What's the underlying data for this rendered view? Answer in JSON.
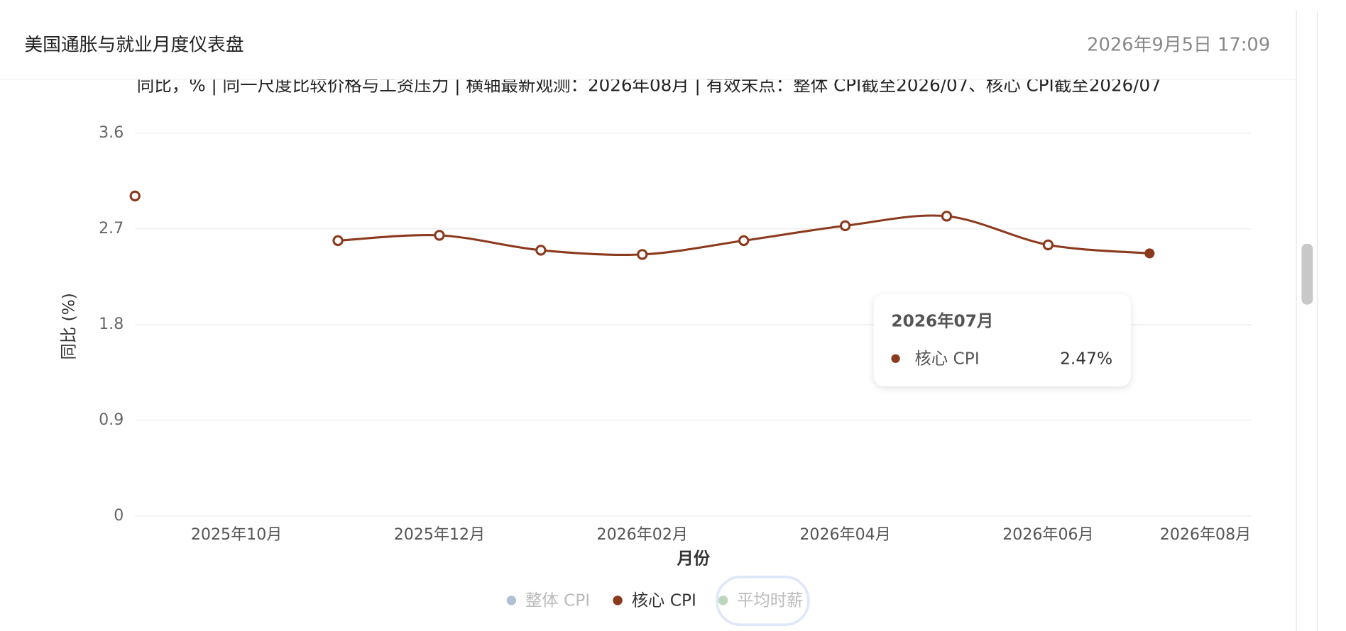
{
  "header": {
    "title": "美国通胀与就业月度仪表盘",
    "timestamp": "2026年9月5日 17:09"
  },
  "chart_data": {
    "type": "line",
    "subtitle": "同比，% | 同一尺度比较价格与工资压力 | 横轴最新观测：2026年08月 | 有效末点：整体 CPI截至2026/07、核心 CPI截至2026/07",
    "x_label": "月份",
    "y_label": "同比 (%)",
    "categories": [
      null,
      "2025年10月",
      null,
      "2025年12月",
      null,
      "2026年02月",
      null,
      "2026年04月",
      null,
      "2026年06月",
      null,
      "2026年08月"
    ],
    "ylim": [
      0,
      3.6
    ],
    "yticks": [
      0,
      0.9,
      1.8,
      2.7,
      3.6
    ],
    "grid": true,
    "series": [
      {
        "name": "整体 CPI",
        "color": "#9aa9c4",
        "hidden": true,
        "values": [
          null,
          null,
          null,
          null,
          null,
          null,
          null,
          null,
          null,
          null,
          null,
          null
        ]
      },
      {
        "name": "核心 CPI",
        "color": "#8b3a1e",
        "hidden": false,
        "values": [
          3.01,
          null,
          2.59,
          2.64,
          2.5,
          2.46,
          2.59,
          2.73,
          2.82,
          2.55,
          2.47,
          null
        ],
        "value_labels": [
          null,
          null,
          null,
          null,
          null,
          null,
          null,
          null,
          null,
          null,
          "2.47%",
          null
        ]
      },
      {
        "name": "平均时薪",
        "color": "#a8c8a8",
        "hidden": true,
        "values": [
          null,
          null,
          null,
          null,
          null,
          null,
          null,
          null,
          null,
          null,
          null,
          null
        ]
      }
    ],
    "tooltip_title": "2026年07月"
  }
}
